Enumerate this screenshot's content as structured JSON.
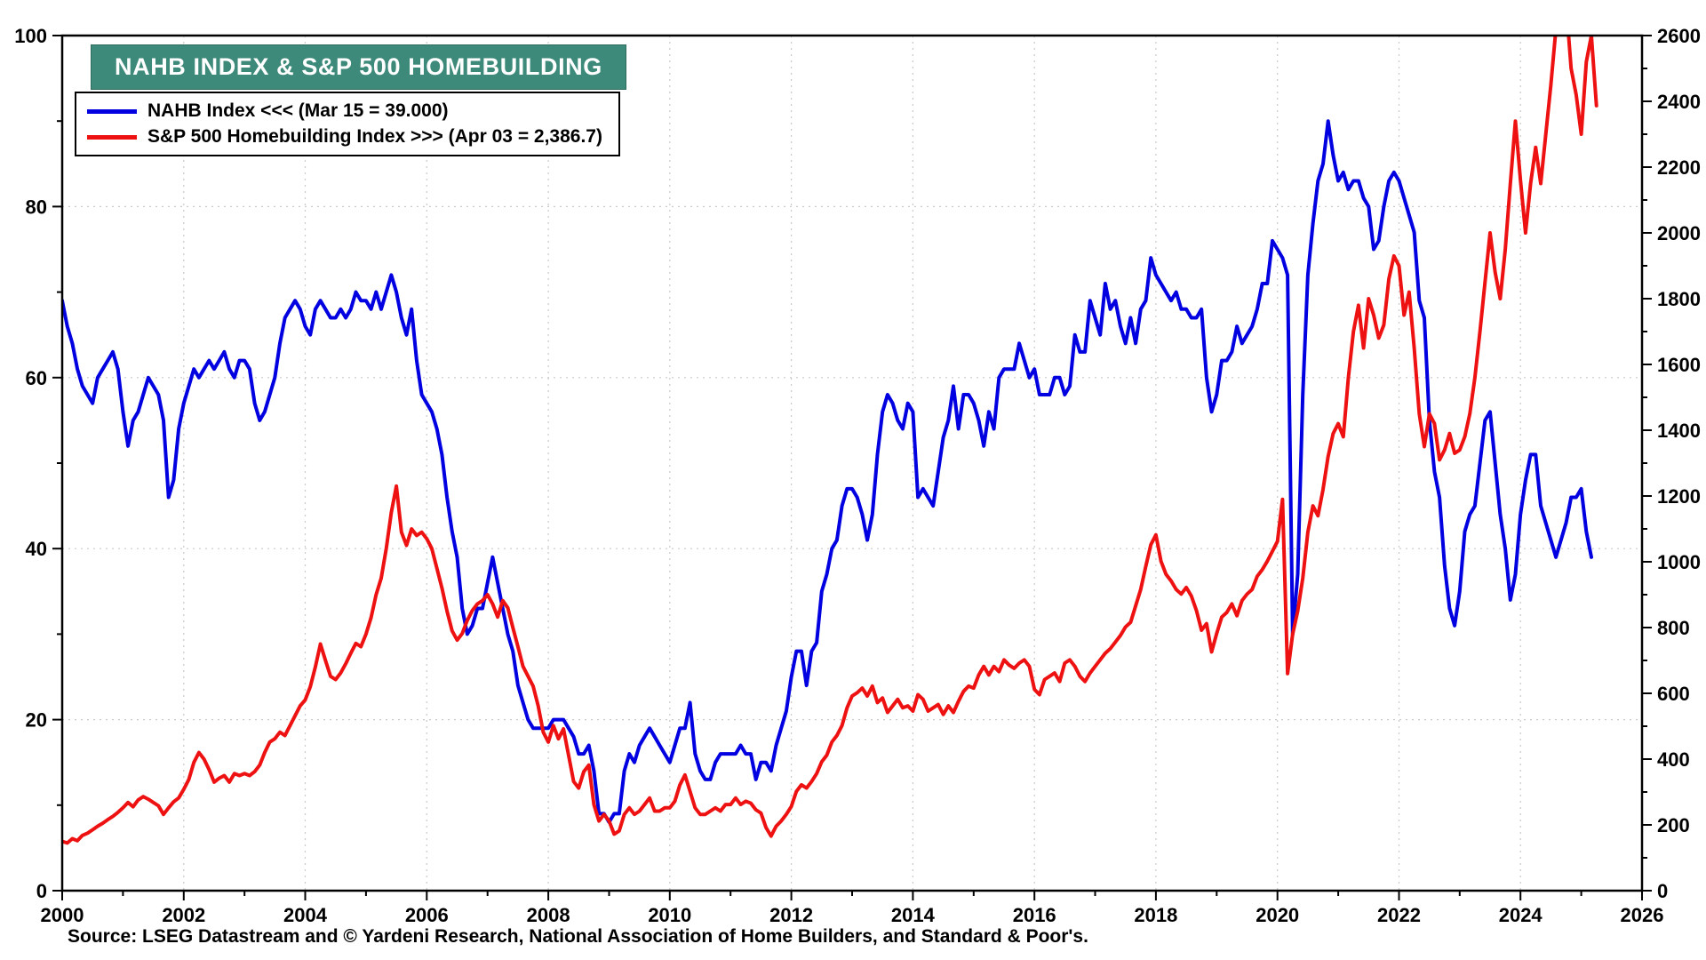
{
  "chart_data": {
    "type": "line",
    "title": "NAHB INDEX & S&P 500 HOMEBUILDING",
    "title_bg_color": "#3d8a7a",
    "legend": [
      {
        "label": "NAHB Index <<<  (Mar 15 = 39.000)",
        "color": "#0000e0"
      },
      {
        "label": "S&P 500 Homebuilding Index >>>  (Apr 03 = 2,386.7)",
        "color": "#ee1111"
      }
    ],
    "source_note": "Source: LSEG Datastream and © Yardeni Research, National Association of Home Builders, and Standard & Poor's.",
    "grid": true,
    "legend_position": "top-left",
    "x_axis": {
      "min": 2000,
      "max": 2026,
      "major_ticks": [
        2000,
        2002,
        2004,
        2006,
        2008,
        2010,
        2012,
        2014,
        2016,
        2018,
        2020,
        2022,
        2024,
        2026
      ]
    },
    "left_axis": {
      "series": "NAHB Index",
      "min": 0,
      "max": 100,
      "ticks": [
        0,
        20,
        40,
        60,
        80,
        100
      ]
    },
    "right_axis": {
      "series": "S&P 500 Homebuilding Index",
      "min": 0,
      "max": 2600,
      "ticks": [
        0,
        200,
        400,
        600,
        800,
        1000,
        1200,
        1400,
        1600,
        1800,
        2000,
        2200,
        2400,
        2600
      ]
    },
    "x_start": 2000,
    "x_step_months": 1,
    "series": [
      {
        "id": "nahb",
        "name": "NAHB Index",
        "axis": "left",
        "color": "#0000e0",
        "last_point": {
          "date": "Mar 15",
          "value": 39.0
        },
        "monthly_values": [
          69,
          66,
          64,
          61,
          59,
          58,
          57,
          60,
          61,
          62,
          63,
          61,
          56,
          52,
          55,
          56,
          58,
          60,
          59,
          58,
          55,
          46,
          48,
          54,
          57,
          59,
          61,
          60,
          61,
          62,
          61,
          62,
          63,
          61,
          60,
          62,
          62,
          61,
          57,
          55,
          56,
          58,
          60,
          64,
          67,
          68,
          69,
          68,
          66,
          65,
          68,
          69,
          68,
          67,
          67,
          68,
          67,
          68,
          70,
          69,
          69,
          68,
          70,
          68,
          70,
          72,
          70,
          67,
          65,
          68,
          62,
          58,
          57,
          56,
          54,
          51,
          46,
          42,
          39,
          33,
          30,
          31,
          33,
          33,
          36,
          39,
          36,
          33,
          30,
          28,
          24,
          22,
          20,
          19,
          19,
          19,
          19,
          20,
          20,
          20,
          19,
          18,
          16,
          16,
          17,
          14,
          9,
          9,
          8,
          9,
          9,
          14,
          16,
          15,
          17,
          18,
          19,
          18,
          17,
          16,
          15,
          17,
          19,
          19,
          22,
          16,
          14,
          13,
          13,
          15,
          16,
          16,
          16,
          16,
          17,
          16,
          16,
          13,
          15,
          15,
          14,
          17,
          19,
          21,
          25,
          28,
          28,
          24,
          28,
          29,
          35,
          37,
          40,
          41,
          45,
          47,
          47,
          46,
          44,
          41,
          44,
          51,
          56,
          58,
          57,
          55,
          54,
          57,
          56,
          46,
          47,
          46,
          45,
          49,
          53,
          55,
          59,
          54,
          58,
          58,
          57,
          55,
          52,
          56,
          54,
          60,
          61,
          61,
          61,
          64,
          62,
          60,
          61,
          58,
          58,
          58,
          60,
          60,
          58,
          59,
          65,
          63,
          63,
          69,
          67,
          65,
          71,
          68,
          69,
          66,
          64,
          67,
          64,
          68,
          69,
          74,
          72,
          71,
          70,
          69,
          70,
          68,
          68,
          67,
          67,
          68,
          60,
          56,
          58,
          62,
          62,
          63,
          66,
          64,
          65,
          66,
          68,
          71,
          71,
          76,
          75,
          74,
          72,
          30,
          37,
          58,
          72,
          78,
          83,
          85,
          90,
          86,
          83,
          84,
          82,
          83,
          83,
          81,
          80,
          75,
          76,
          80,
          83,
          84,
          83,
          81,
          79,
          77,
          69,
          67,
          55,
          49,
          46,
          38,
          33,
          31,
          35,
          42,
          44,
          45,
          50,
          55,
          56,
          50,
          44,
          40,
          34,
          37,
          44,
          48,
          51,
          51,
          45,
          43,
          41,
          39,
          41,
          43,
          46,
          46,
          47,
          42,
          39
        ]
      },
      {
        "id": "sp500-homebuilding",
        "name": "S&P 500 Homebuilding Index",
        "axis": "right",
        "color": "#ee1111",
        "last_point": {
          "date": "Apr 03",
          "value": 2386.7
        },
        "monthly_values": [
          150,
          145,
          158,
          152,
          168,
          175,
          185,
          196,
          205,
          216,
          226,
          238,
          252,
          268,
          255,
          276,
          286,
          278,
          268,
          258,
          232,
          252,
          270,
          282,
          308,
          338,
          390,
          420,
          400,
          368,
          330,
          342,
          350,
          330,
          356,
          350,
          356,
          350,
          362,
          382,
          420,
          452,
          462,
          482,
          472,
          502,
          532,
          562,
          580,
          620,
          680,
          750,
          700,
          652,
          642,
          662,
          690,
          722,
          752,
          742,
          780,
          830,
          900,
          950,
          1040,
          1150,
          1230,
          1090,
          1050,
          1100,
          1080,
          1090,
          1070,
          1040,
          980,
          920,
          850,
          790,
          762,
          782,
          822,
          852,
          872,
          882,
          900,
          872,
          832,
          882,
          860,
          800,
          742,
          682,
          652,
          622,
          562,
          482,
          452,
          502,
          462,
          492,
          412,
          332,
          312,
          362,
          382,
          262,
          212,
          232,
          212,
          172,
          182,
          232,
          252,
          232,
          242,
          262,
          282,
          242,
          242,
          252,
          252,
          272,
          322,
          352,
          302,
          252,
          232,
          232,
          242,
          252,
          242,
          262,
          262,
          282,
          262,
          272,
          266,
          246,
          236,
          192,
          166,
          196,
          212,
          232,
          256,
          302,
          322,
          312,
          332,
          356,
          392,
          412,
          452,
          472,
          502,
          556,
          592,
          602,
          616,
          592,
          622,
          572,
          586,
          542,
          562,
          582,
          556,
          562,
          546,
          596,
          582,
          546,
          556,
          566,
          536,
          562,
          542,
          576,
          606,
          622,
          616,
          656,
          682,
          656,
          682,
          666,
          702,
          686,
          676,
          692,
          702,
          682,
          612,
          596,
          642,
          652,
          662,
          636,
          692,
          702,
          682,
          652,
          636,
          662,
          682,
          702,
          722,
          736,
          756,
          776,
          802,
          816,
          866,
          916,
          986,
          1052,
          1082,
          1002,
          962,
          942,
          916,
          902,
          922,
          896,
          852,
          792,
          812,
          726,
          782,
          832,
          846,
          872,
          836,
          882,
          902,
          916,
          956,
          976,
          1002,
          1032,
          1062,
          1190,
          660,
          780,
          850,
          950,
          1090,
          1170,
          1140,
          1220,
          1320,
          1390,
          1420,
          1380,
          1560,
          1700,
          1780,
          1650,
          1800,
          1750,
          1680,
          1720,
          1860,
          1930,
          1900,
          1750,
          1820,
          1650,
          1450,
          1350,
          1450,
          1420,
          1310,
          1340,
          1390,
          1330,
          1340,
          1380,
          1450,
          1560,
          1700,
          1850,
          2000,
          1880,
          1800,
          1950,
          2150,
          2340,
          2160,
          2000,
          2150,
          2260,
          2150,
          2300,
          2450,
          2620,
          2740,
          2700,
          2500,
          2420,
          2300,
          2520,
          2600,
          2386.7
        ]
      }
    ]
  }
}
